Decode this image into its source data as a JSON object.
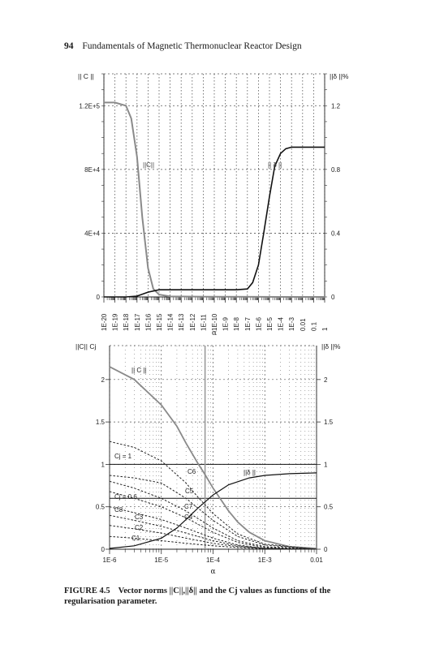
{
  "header": {
    "page_number": "94",
    "running_title": "Fundamentals of Magnetic Thermonuclear Reactor Design"
  },
  "caption": {
    "figure_label": "FIGURE 4.5",
    "text": "Vector norms ||C||,||δ|| and the Cj values as functions of the regularisation parameter."
  },
  "colors": {
    "c_norm": "#8a8a8a",
    "delta_norm": "#111111",
    "cj": "#222222",
    "grid": "#555555"
  },
  "chart_data": [
    {
      "type": "line",
      "x_scale": "log",
      "xlabel": "α",
      "ylabel_left": "|| C ||",
      "ylabel_right": "||δ ||%",
      "x_ticks": [
        "1E-20",
        "1E-19",
        "1E-18",
        "1E-17",
        "1E-16",
        "1E-15",
        "1E-14",
        "1E-13",
        "1E-12",
        "1E-11",
        "1E-10",
        "1E-9",
        "1E-8",
        "1E-7",
        "1E-6",
        "1E-5",
        "1E-4",
        "1E-3",
        "0.01",
        "0.1",
        "1"
      ],
      "y_left_ticks": [
        "0",
        "4E+4",
        "8E+4",
        "1.2E+5"
      ],
      "y_right_ticks": [
        "0",
        "0.4",
        "0.8",
        "1.2"
      ],
      "ylim_left": [
        0,
        140000
      ],
      "ylim_right": [
        0,
        1.4
      ],
      "annotations": [
        "||C||",
        "|| δ ||"
      ],
      "series": [
        {
          "name": "||C||",
          "axis": "left",
          "x": [
            1e-20,
            1e-19,
            1e-18,
            3e-18,
            1e-17,
            3e-17,
            1e-16,
            3e-16,
            1e-15,
            1e-14,
            1e-10,
            1e-06,
            0.0001,
            1
          ],
          "y": [
            122000,
            122000,
            120000,
            112000,
            88000,
            50000,
            18000,
            5000,
            1500,
            300,
            100,
            50,
            20,
            0
          ]
        },
        {
          "name": "||δ||",
          "axis": "right",
          "x": [
            1e-20,
            1e-18,
            1e-17,
            1e-16,
            1e-15,
            1e-12,
            1e-08,
            1e-07,
            3e-07,
            1e-06,
            3e-06,
            1e-05,
            3e-05,
            0.0001,
            0.0003,
            0.001,
            0.01,
            0.1,
            1
          ],
          "y": [
            0,
            0,
            0.005,
            0.03,
            0.045,
            0.045,
            0.045,
            0.05,
            0.09,
            0.2,
            0.4,
            0.63,
            0.82,
            0.9,
            0.93,
            0.94,
            0.94,
            0.94,
            0.94
          ]
        }
      ]
    },
    {
      "type": "line",
      "x_scale": "log",
      "xlabel": "α",
      "ylabel_left": "||C|| Cj",
      "ylabel_right": "||δ ||%",
      "x_ticks": [
        "1E-6",
        "1E-5",
        "1E-4",
        "1E-3",
        "0.01"
      ],
      "y_left_ticks": [
        "0",
        "0.5",
        "1",
        "1.5",
        "2"
      ],
      "y_right_ticks": [
        "0",
        "0.5",
        "1",
        "1.5",
        "2"
      ],
      "ylim": [
        0,
        2.4
      ],
      "annotations": [
        "|| C ||",
        "||δ ||",
        "Cj = 1",
        "Cj = 0.6",
        "C6",
        "C5",
        "C7",
        "C4",
        "C8",
        "C3",
        "C2",
        "C1"
      ],
      "series": [
        {
          "name": "||C||",
          "x": [
            1e-06,
            3e-06,
            1e-05,
            2e-05,
            3e-05,
            5e-05,
            7e-05,
            0.0001,
            0.0002,
            0.0003,
            0.0005,
            0.001,
            0.003,
            0.01
          ],
          "y": [
            2.15,
            2.0,
            1.7,
            1.45,
            1.25,
            1.02,
            0.88,
            0.72,
            0.45,
            0.32,
            0.2,
            0.1,
            0.03,
            0.01
          ]
        },
        {
          "name": "||δ||",
          "x": [
            1e-06,
            3e-06,
            1e-05,
            2e-05,
            3e-05,
            5e-05,
            0.0001,
            0.0002,
            0.0005,
            0.001,
            0.003,
            0.01
          ],
          "y": [
            0.01,
            0.04,
            0.13,
            0.25,
            0.35,
            0.48,
            0.64,
            0.76,
            0.84,
            0.87,
            0.89,
            0.9
          ]
        },
        {
          "name": "C6",
          "x": [
            1e-06,
            3e-06,
            1e-05,
            3e-05,
            5e-05,
            0.0001,
            0.0003,
            0.001,
            0.01
          ],
          "y": [
            1.27,
            1.2,
            1.04,
            0.78,
            0.62,
            0.42,
            0.18,
            0.06,
            0.0
          ]
        },
        {
          "name": "C5",
          "x": [
            1e-06,
            3e-06,
            1e-05,
            3e-05,
            0.0001,
            0.0003,
            0.001,
            0.01
          ],
          "y": [
            0.87,
            0.84,
            0.78,
            0.6,
            0.34,
            0.15,
            0.05,
            0.0
          ]
        },
        {
          "name": "C7",
          "x": [
            1e-06,
            3e-06,
            1e-05,
            3e-05,
            0.0001,
            0.0003,
            0.001,
            0.01
          ],
          "y": [
            0.8,
            0.72,
            0.6,
            0.45,
            0.25,
            0.1,
            0.03,
            0.0
          ]
        },
        {
          "name": "C4",
          "x": [
            1e-06,
            3e-06,
            1e-05,
            3e-05,
            0.0001,
            0.0003,
            0.001,
            0.01
          ],
          "y": [
            0.68,
            0.6,
            0.5,
            0.37,
            0.2,
            0.08,
            0.02,
            0.0
          ]
        },
        {
          "name": "C8",
          "x": [
            1e-06,
            3e-06,
            1e-05,
            3e-05,
            0.0001,
            0.0003,
            0.001,
            0.01
          ],
          "y": [
            0.5,
            0.43,
            0.35,
            0.25,
            0.13,
            0.05,
            0.01,
            0.0
          ]
        },
        {
          "name": "C3",
          "x": [
            1e-06,
            3e-06,
            1e-05,
            3e-05,
            0.0001,
            0.0003,
            0.001,
            0.01
          ],
          "y": [
            0.4,
            0.34,
            0.27,
            0.19,
            0.1,
            0.04,
            0.01,
            0.0
          ]
        },
        {
          "name": "C2",
          "x": [
            1e-06,
            3e-06,
            1e-05,
            3e-05,
            0.0001,
            0.0003,
            0.001,
            0.01
          ],
          "y": [
            0.28,
            0.24,
            0.19,
            0.13,
            0.07,
            0.03,
            0.01,
            0.0
          ]
        },
        {
          "name": "C1",
          "x": [
            1e-06,
            3e-06,
            1e-05,
            3e-05,
            0.0001,
            0.0003,
            0.001,
            0.01
          ],
          "y": [
            0.15,
            0.13,
            0.1,
            0.07,
            0.04,
            0.02,
            0.005,
            0.0
          ]
        }
      ],
      "reference_lines": [
        {
          "label": "Cj = 1",
          "y": 1
        },
        {
          "label": "Cj = 0.6",
          "y": 0.6
        }
      ],
      "vertical_marker": {
        "x": 7e-05
      }
    }
  ]
}
